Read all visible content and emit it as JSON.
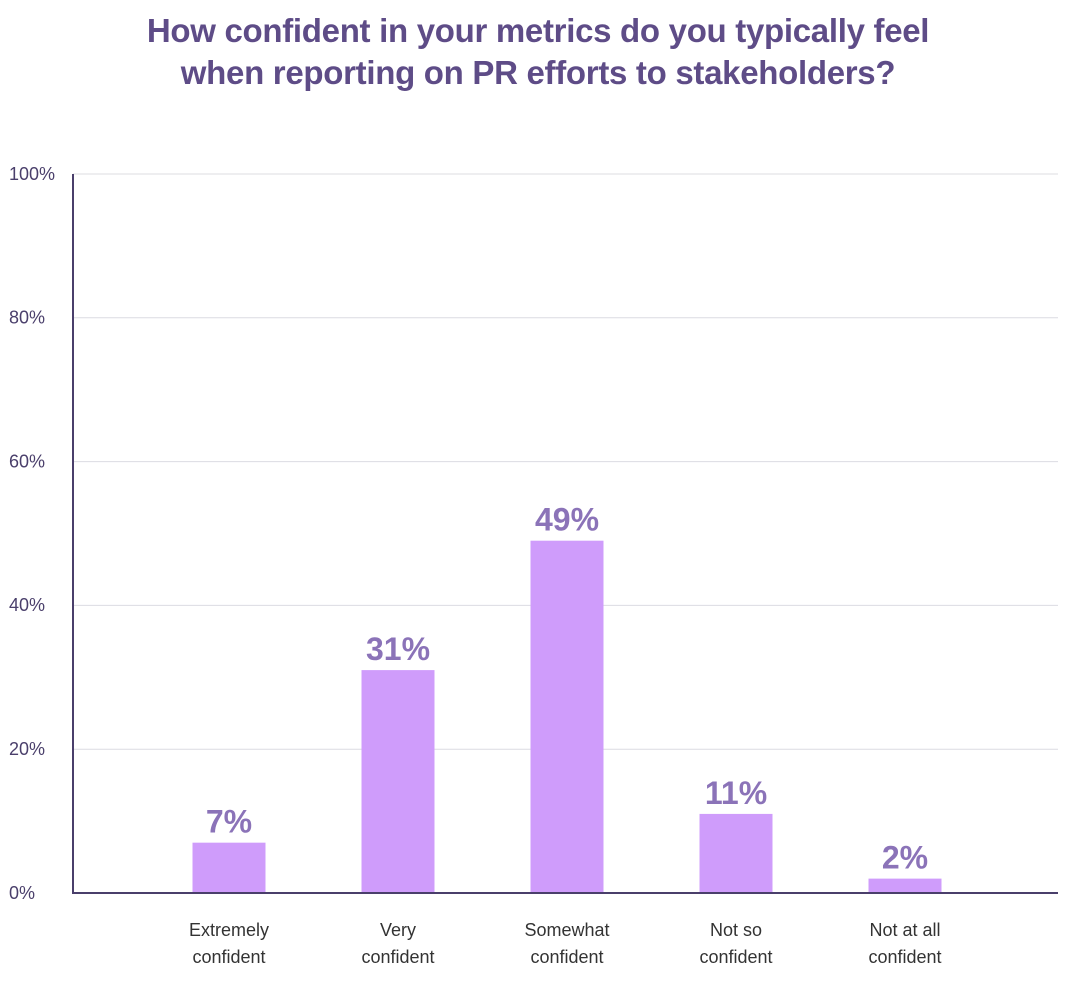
{
  "chart_data": {
    "type": "bar",
    "title_lines": [
      "How confident in your metrics do you typically feel",
      "when reporting on PR efforts to stakeholders?"
    ],
    "categories": [
      [
        "Extremely",
        "confident"
      ],
      [
        "Very",
        "confident"
      ],
      [
        "Somewhat",
        "confident"
      ],
      [
        "Not so",
        "confident"
      ],
      [
        "Not at all",
        "confident"
      ]
    ],
    "values": [
      7,
      31,
      49,
      11,
      2
    ],
    "data_labels": [
      "7%",
      "31%",
      "49%",
      "11%",
      "2%"
    ],
    "y_ticks": [
      0,
      20,
      40,
      60,
      80,
      100
    ],
    "y_tick_labels": [
      "0%",
      "20%",
      "40%",
      "60%",
      "80%",
      "100%"
    ],
    "ylim": [
      0,
      100
    ],
    "grid": true,
    "legend": "none",
    "colors": {
      "bar": "#cf9cfb",
      "title": "#5e4c87",
      "axis": "#4a3f6b",
      "grid": "#dcdce2",
      "data_label": "#8b73b8"
    }
  }
}
